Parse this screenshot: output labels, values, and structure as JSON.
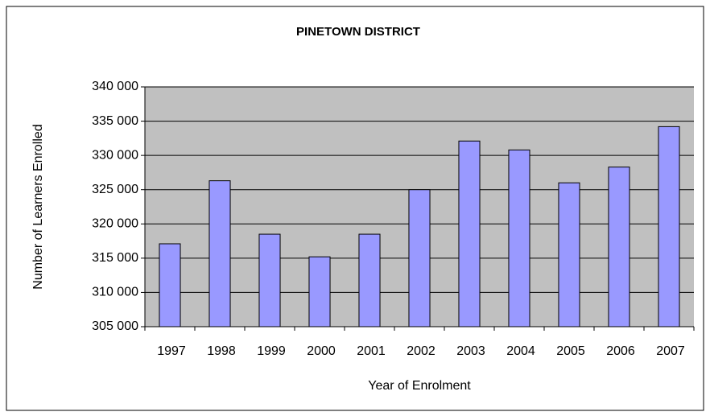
{
  "chart_data": {
    "type": "bar",
    "title": "PINETOWN DISTRICT",
    "x_label": "Year of Enrolment",
    "y_label": "Number of Learners Enrolled",
    "categories": [
      "1997",
      "1998",
      "1999",
      "2000",
      "2001",
      "2002",
      "2003",
      "2004",
      "2005",
      "2006",
      "2007"
    ],
    "values": [
      317100,
      326300,
      318500,
      315200,
      318500,
      325000,
      332100,
      330800,
      326000,
      328300,
      334200
    ],
    "color": "#9999ff",
    "ylim": [
      305000,
      340000
    ],
    "yticks": [
      {
        "value": 305000,
        "label": "305 000"
      },
      {
        "value": 310000,
        "label": "310 000"
      },
      {
        "value": 315000,
        "label": "315 000"
      },
      {
        "value": 320000,
        "label": "320 000"
      },
      {
        "value": 325000,
        "label": "325 000"
      },
      {
        "value": 330000,
        "label": "330 000"
      },
      {
        "value": 335000,
        "label": "335 000"
      },
      {
        "value": 340000,
        "label": "340 000"
      }
    ],
    "grid": true
  }
}
